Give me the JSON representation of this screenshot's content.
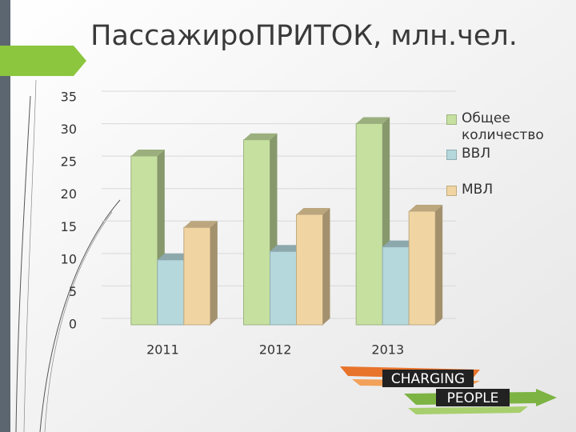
{
  "chart_data": {
    "type": "bar3d",
    "title": "ПассажироПРИТОК, млн.чел.",
    "categories": [
      "2011",
      "2012",
      "2013"
    ],
    "series": [
      {
        "name": "Общее количество",
        "color": "#c6e0a0",
        "values": [
          26,
          28.5,
          31
        ]
      },
      {
        "name": "ВВЛ",
        "color": "#b5d8dc",
        "values": [
          10,
          11.3,
          12
        ]
      },
      {
        "name": "МВЛ",
        "color": "#f0d5a2",
        "values": [
          15,
          17,
          17.5
        ]
      }
    ],
    "ylim": [
      0,
      35
    ],
    "yticks": [
      0,
      5,
      10,
      15,
      20,
      25,
      30,
      35
    ],
    "grid": true
  },
  "logo": {
    "line1": "CHARGING",
    "line2": "PEOPLE"
  }
}
